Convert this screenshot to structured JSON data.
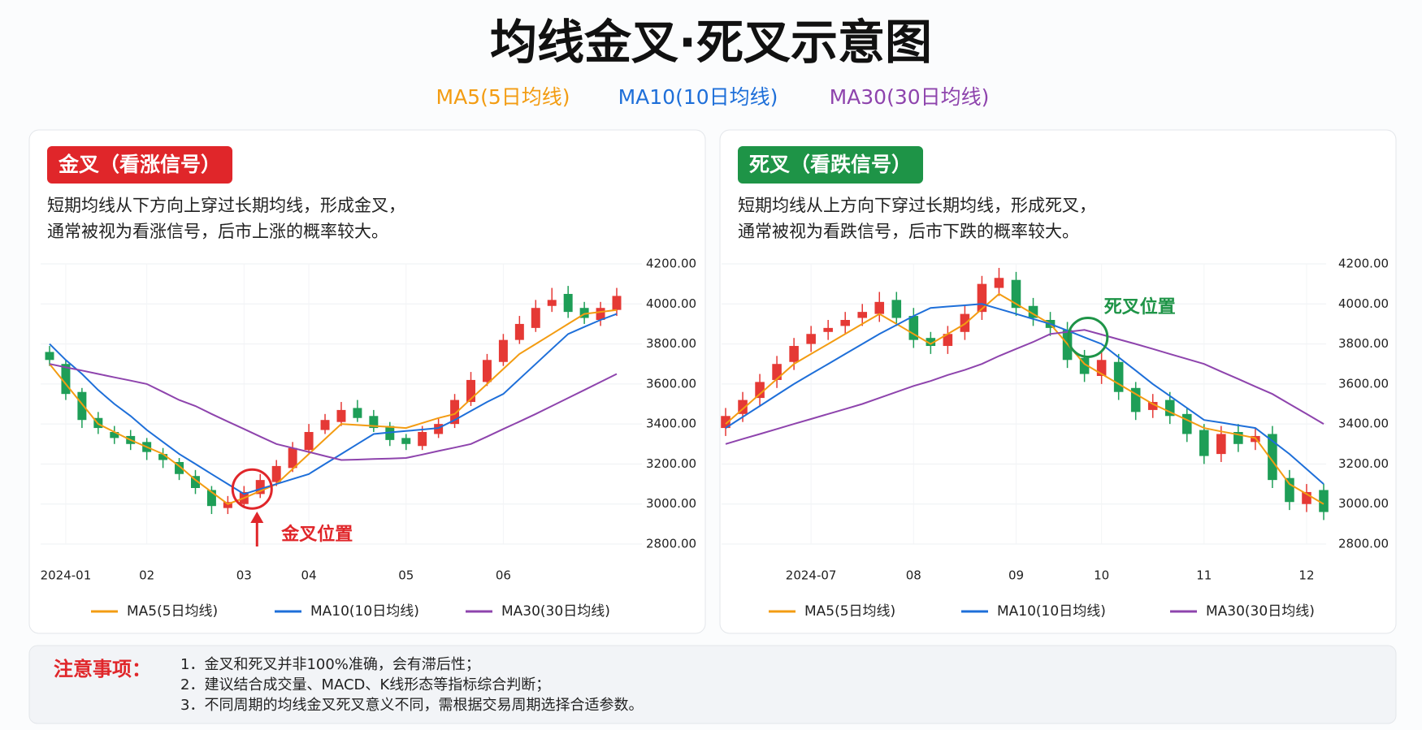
{
  "title": "均线金叉·死叉示意图",
  "chart_data": [
    {
      "type": "candlestick",
      "badge": "金叉（看涨信号）",
      "badge_color": "#e0262a",
      "description": [
        "短期均线从下方向上穿过长期均线，形成金叉，",
        "通常被视为看涨信号，后市上涨的概率较大。"
      ],
      "annotation": "金叉位置",
      "annotation_color": "#e0262a",
      "categories": [
        null,
        "2024-01",
        null,
        null,
        null,
        null,
        "02",
        null,
        null,
        null,
        null,
        null,
        "03",
        null,
        null,
        null,
        "04",
        null,
        null,
        null,
        null,
        null,
        "05",
        null,
        null,
        null,
        null,
        null,
        "06",
        null,
        null,
        null,
        null,
        null,
        null,
        null
      ],
      "open": [
        3760,
        3700,
        3560,
        3430,
        3360,
        3340,
        3310,
        3250,
        3210,
        3140,
        3070,
        2980,
        3000,
        3050,
        3110,
        3180,
        3270,
        3370,
        3410,
        3480,
        3440,
        3390,
        3330,
        3290,
        3350,
        3400,
        3510,
        3610,
        3710,
        3820,
        3880,
        3990,
        4050,
        3980,
        3920,
        3970
      ],
      "high": [
        3790,
        3720,
        3580,
        3460,
        3390,
        3370,
        3330,
        3280,
        3230,
        3170,
        3090,
        3040,
        3090,
        3150,
        3220,
        3310,
        3400,
        3450,
        3510,
        3520,
        3470,
        3410,
        3350,
        3390,
        3430,
        3550,
        3660,
        3750,
        3850,
        3940,
        4020,
        4080,
        4090,
        4010,
        4010,
        4080
      ],
      "low": [
        3690,
        3520,
        3380,
        3350,
        3300,
        3270,
        3220,
        3180,
        3120,
        3050,
        2950,
        2950,
        2980,
        3030,
        3090,
        3160,
        3250,
        3350,
        3390,
        3410,
        3360,
        3290,
        3270,
        3270,
        3330,
        3380,
        3490,
        3590,
        3690,
        3800,
        3860,
        3960,
        3930,
        3900,
        3890,
        3940
      ],
      "close": [
        3720,
        3550,
        3420,
        3380,
        3330,
        3300,
        3260,
        3220,
        3150,
        3080,
        2990,
        3010,
        3060,
        3120,
        3190,
        3280,
        3360,
        3420,
        3470,
        3430,
        3380,
        3320,
        3300,
        3360,
        3400,
        3520,
        3620,
        3720,
        3820,
        3900,
        3980,
        4020,
        3960,
        3930,
        3980,
        4040
      ],
      "up_color": "#e53935",
      "down_color": "#1e9e57",
      "series": [
        {
          "name": "MA5(5日均线)",
          "color": "#f39c12",
          "values": [
            3700,
            3600,
            3500,
            3400,
            3360,
            3320,
            3285,
            3250,
            3190,
            3120,
            3060,
            3000,
            3030,
            3065,
            3100,
            3175,
            3250,
            3325,
            3400,
            3395,
            3390,
            3385,
            3380,
            3405,
            3430,
            3450,
            3525,
            3600,
            3675,
            3750,
            3800,
            3850,
            3900,
            3950,
            3960,
            3970
          ]
        },
        {
          "name": "MA10(10日均线)",
          "color": "#1e6fd9",
          "values": [
            3800,
            3720,
            3650,
            3570,
            3500,
            3440,
            3370,
            3310,
            3250,
            3200,
            3150,
            3100,
            3050,
            3075,
            3100,
            3125,
            3150,
            3200,
            3250,
            3300,
            3350,
            3358,
            3365,
            3372,
            3380,
            3420,
            3465,
            3510,
            3550,
            3625,
            3700,
            3775,
            3850,
            3885,
            3920,
            3950
          ]
        },
        {
          "name": "MA30(30日均线)",
          "color": "#8e44ad",
          "values": [
            3700,
            3683,
            3667,
            3650,
            3633,
            3617,
            3600,
            3560,
            3520,
            3490,
            3450,
            3412,
            3375,
            3337,
            3300,
            3280,
            3260,
            3240,
            3220,
            3222,
            3225,
            3227,
            3230,
            3247,
            3265,
            3282,
            3300,
            3337,
            3375,
            3412,
            3450,
            3490,
            3530,
            3570,
            3610,
            3650
          ]
        }
      ],
      "ylim": [
        2800,
        4200
      ],
      "yticks": [
        {
          "value": 2800,
          "label": "2800.00"
        },
        {
          "value": 3000,
          "label": "3000.00"
        },
        {
          "value": 3200,
          "label": "3200.00"
        },
        {
          "value": 3400,
          "label": "3400.00"
        },
        {
          "value": 3600,
          "label": "3600.00"
        },
        {
          "value": 3800,
          "label": "3800.00"
        },
        {
          "value": 4000,
          "label": "4000.00"
        },
        {
          "value": 4200,
          "label": "4200.00"
        }
      ],
      "grid": true
    },
    {
      "type": "candlestick",
      "badge": "死叉（看跌信号）",
      "badge_color": "#1e9447",
      "description": [
        "短期均线从上方向下穿过长期均线，形成死叉，",
        "通常被视为看跌信号，后市下跌的概率较大。"
      ],
      "annotation": "死叉位置",
      "annotation_color": "#1e9447",
      "categories": [
        null,
        null,
        null,
        null,
        null,
        "2024-07",
        null,
        null,
        null,
        null,
        null,
        "08",
        null,
        null,
        null,
        null,
        null,
        "09",
        null,
        null,
        null,
        null,
        "10",
        null,
        null,
        null,
        null,
        null,
        "11",
        null,
        null,
        null,
        null,
        null,
        "12",
        null
      ],
      "open": [
        3380,
        3450,
        3530,
        3620,
        3710,
        3800,
        3860,
        3890,
        3930,
        3950,
        4020,
        3940,
        3830,
        3790,
        3860,
        3960,
        4080,
        4120,
        3990,
        3920,
        3870,
        3730,
        3640,
        3710,
        3580,
        3470,
        3520,
        3450,
        3370,
        3250,
        3360,
        3310,
        3350,
        3130,
        3000,
        3070
      ],
      "high": [
        3480,
        3560,
        3650,
        3740,
        3830,
        3890,
        3920,
        3960,
        4000,
        4060,
        4060,
        3980,
        3860,
        3890,
        3990,
        4140,
        4180,
        4160,
        4030,
        3960,
        3910,
        3770,
        3760,
        3750,
        3610,
        3550,
        3560,
        3480,
        3400,
        3390,
        3400,
        3380,
        3390,
        3170,
        3100,
        3100
      ],
      "low": [
        3340,
        3410,
        3490,
        3580,
        3670,
        3760,
        3820,
        3850,
        3890,
        3910,
        3890,
        3780,
        3750,
        3750,
        3820,
        3920,
        4040,
        3940,
        3890,
        3840,
        3680,
        3610,
        3600,
        3520,
        3420,
        3430,
        3400,
        3310,
        3200,
        3210,
        3260,
        3270,
        3080,
        2970,
        2960,
        2920
      ],
      "close": [
        3440,
        3520,
        3610,
        3700,
        3790,
        3850,
        3880,
        3920,
        3960,
        4010,
        3930,
        3820,
        3790,
        3850,
        3950,
        4100,
        4130,
        3980,
        3930,
        3880,
        3720,
        3650,
        3720,
        3560,
        3460,
        3510,
        3440,
        3350,
        3240,
        3350,
        3300,
        3340,
        3120,
        3010,
        3060,
        2960
      ],
      "up_color": "#e53935",
      "down_color": "#1e9e57",
      "series": [
        {
          "name": "MA5(5日均线)",
          "color": "#f39c12",
          "values": [
            3400,
            3475,
            3550,
            3625,
            3700,
            3750,
            3800,
            3850,
            3900,
            3950,
            3900,
            3850,
            3800,
            3850,
            3900,
            3975,
            4050,
            4000,
            3950,
            3900,
            3800,
            3700,
            3650,
            3600,
            3550,
            3500,
            3460,
            3420,
            3380,
            3363,
            3347,
            3330,
            3215,
            3100,
            3050,
            3000
          ]
        },
        {
          "name": "MA10(10日均线)",
          "color": "#1e6fd9",
          "values": [
            3380,
            3435,
            3490,
            3545,
            3600,
            3650,
            3700,
            3750,
            3800,
            3850,
            3895,
            3940,
            3980,
            3987,
            3993,
            4000,
            3975,
            3950,
            3925,
            3900,
            3867,
            3833,
            3800,
            3733,
            3667,
            3600,
            3540,
            3480,
            3420,
            3407,
            3393,
            3380,
            3315,
            3250,
            3175,
            3100
          ]
        },
        {
          "name": "MA30(30日均线)",
          "color": "#8e44ad",
          "values": [
            3300,
            3325,
            3350,
            3375,
            3400,
            3425,
            3450,
            3475,
            3500,
            3530,
            3560,
            3590,
            3615,
            3645,
            3670,
            3700,
            3740,
            3775,
            3810,
            3850,
            3860,
            3870,
            3847,
            3823,
            3800,
            3775,
            3750,
            3725,
            3700,
            3662,
            3625,
            3587,
            3550,
            3500,
            3450,
            3400
          ]
        }
      ],
      "ylim": [
        2800,
        4200
      ],
      "yticks": [
        {
          "value": 2800,
          "label": "2800.00"
        },
        {
          "value": 3000,
          "label": "3000.00"
        },
        {
          "value": 3200,
          "label": "3200.00"
        },
        {
          "value": 3400,
          "label": "3400.00"
        },
        {
          "value": 3600,
          "label": "3600.00"
        },
        {
          "value": 3800,
          "label": "3800.00"
        },
        {
          "value": 4000,
          "label": "4000.00"
        },
        {
          "value": 4200,
          "label": "4200.00"
        }
      ],
      "grid": true
    }
  ],
  "notes": {
    "label": "注意事项：",
    "items": [
      "1．金叉和死叉并非100%准确，会有滞后性；",
      "2．建议结合成交量、MACD、K线形态等指标综合判断；",
      "3．不同周期的均线金叉死叉意义不同，需根据交易周期选择合适参数。"
    ]
  }
}
